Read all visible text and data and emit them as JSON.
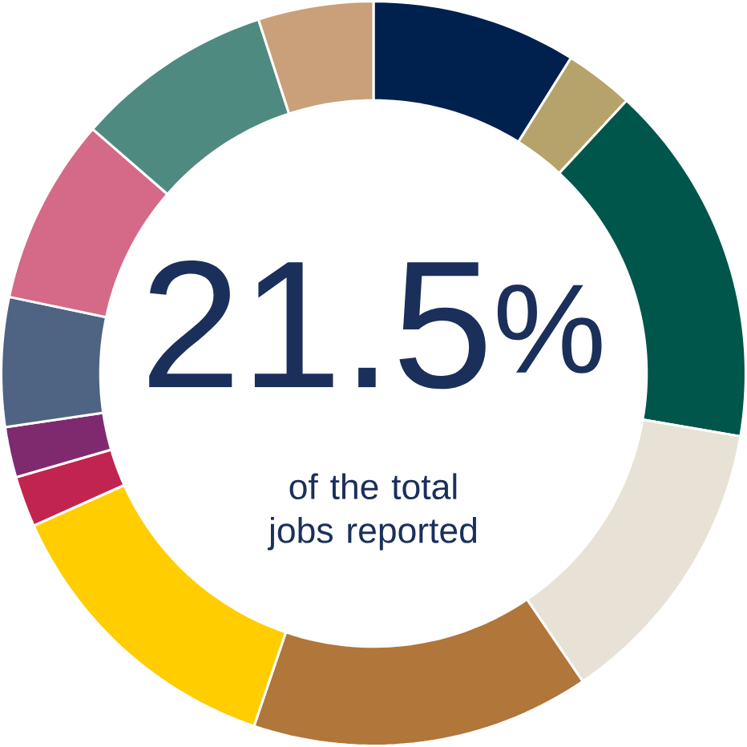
{
  "chart_data": {
    "type": "donut",
    "categories": [
      null,
      null,
      null,
      null,
      null,
      null,
      null,
      null,
      null,
      null,
      null,
      null
    ],
    "values": [
      8.9,
      3.0,
      15.8,
      12.8,
      14.7,
      13.1,
      2.2,
      2.2,
      5.6,
      8.1,
      8.6,
      5.0
    ],
    "colors": [
      "#00214d",
      "#b5a36b",
      "#00564b",
      "#e8e2d6",
      "#b0763a",
      "#ffcd00",
      "#c1244f",
      "#7f2a6f",
      "#4e6482",
      "#d46a87",
      "#4f8a80",
      "#c9a07a"
    ],
    "annotations": [
      "21.5$^{%}$",
      "of the total jobs reported"
    ]
  }
}
